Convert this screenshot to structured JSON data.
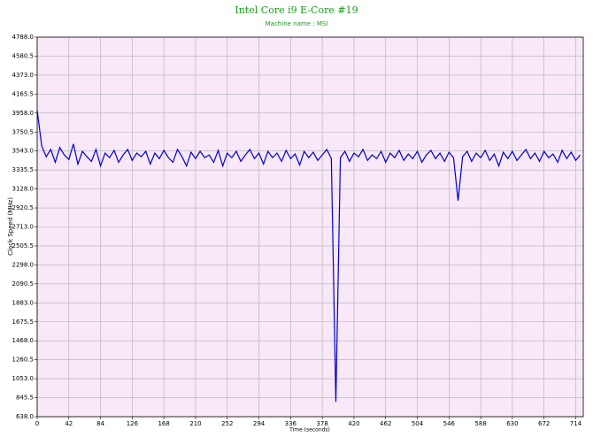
{
  "chart_data": {
    "type": "line",
    "title": "Intel Core i9 E-Core #19",
    "subtitle": "Machine name : MSI",
    "x_label": "Time (seconds)",
    "y_label": "Clock Speed (MHz)",
    "background": "#f8e8f8",
    "grid": true,
    "xlim": [
      0,
      724
    ],
    "xticks": [
      0,
      42,
      84,
      126,
      168,
      210,
      252,
      294,
      336,
      378,
      420,
      462,
      504,
      546,
      588,
      630,
      672,
      714
    ],
    "ylim": [
      638,
      4788
    ],
    "yticks": [
      {
        "value": 638,
        "label": "638.0"
      },
      845.5,
      {
        "value": 1053,
        "label": "1053.0"
      },
      1260.5,
      {
        "value": 1468,
        "label": "1468.0"
      },
      1675.5,
      {
        "value": 1883,
        "label": "1883.0"
      },
      2090.5,
      {
        "value": 2298,
        "label": "2298.0"
      },
      2505.5,
      {
        "value": 2713,
        "label": "2713.0"
      },
      2920.5,
      {
        "value": 3128,
        "label": "3128.0"
      },
      3335.5,
      {
        "value": 3543,
        "label": "3543.0"
      },
      3750.5,
      {
        "value": 3958,
        "label": "3958.0"
      },
      4165.5,
      {
        "value": 4373,
        "label": "4373.0"
      },
      4580.5,
      {
        "value": 4788,
        "label": "4788.0"
      }
    ],
    "x": [
      0,
      6,
      12,
      18,
      24,
      30,
      36,
      42,
      48,
      54,
      60,
      66,
      72,
      78,
      84,
      90,
      96,
      102,
      108,
      114,
      120,
      126,
      132,
      138,
      144,
      150,
      156,
      162,
      168,
      174,
      180,
      186,
      192,
      198,
      204,
      210,
      216,
      222,
      228,
      234,
      240,
      246,
      252,
      258,
      264,
      270,
      276,
      282,
      288,
      294,
      300,
      306,
      312,
      318,
      324,
      330,
      336,
      342,
      348,
      354,
      360,
      366,
      372,
      378,
      384,
      390,
      396,
      402,
      408,
      414,
      420,
      426,
      432,
      438,
      444,
      450,
      456,
      462,
      468,
      474,
      480,
      486,
      492,
      498,
      504,
      510,
      516,
      522,
      528,
      534,
      540,
      546,
      552,
      558,
      564,
      570,
      576,
      582,
      588,
      594,
      600,
      606,
      612,
      618,
      624,
      630,
      636,
      642,
      648,
      654,
      660,
      666,
      672,
      678,
      684,
      690,
      696,
      702,
      708,
      714,
      720
    ],
    "series": [
      {
        "name": "Clock Speed",
        "color": "#0000cc",
        "values": [
          3990,
          3600,
          3480,
          3560,
          3420,
          3580,
          3500,
          3450,
          3620,
          3400,
          3540,
          3480,
          3430,
          3560,
          3380,
          3520,
          3470,
          3550,
          3420,
          3500,
          3560,
          3440,
          3520,
          3480,
          3540,
          3400,
          3520,
          3460,
          3550,
          3470,
          3420,
          3560,
          3480,
          3380,
          3530,
          3460,
          3540,
          3470,
          3500,
          3420,
          3550,
          3380,
          3520,
          3470,
          3540,
          3430,
          3500,
          3560,
          3460,
          3520,
          3400,
          3540,
          3470,
          3520,
          3430,
          3550,
          3460,
          3510,
          3390,
          3540,
          3470,
          3530,
          3440,
          3500,
          3560,
          3460,
          800,
          3470,
          3540,
          3430,
          3520,
          3480,
          3560,
          3440,
          3500,
          3460,
          3540,
          3420,
          3520,
          3470,
          3550,
          3440,
          3510,
          3460,
          3540,
          3420,
          3500,
          3550,
          3460,
          3520,
          3430,
          3530,
          3470,
          3000,
          3480,
          3540,
          3430,
          3520,
          3470,
          3550,
          3440,
          3510,
          3380,
          3530,
          3460,
          3540,
          3440,
          3500,
          3560,
          3460,
          3520,
          3430,
          3540,
          3470,
          3510,
          3420,
          3550,
          3460,
          3530,
          3440,
          3500
        ]
      }
    ]
  }
}
